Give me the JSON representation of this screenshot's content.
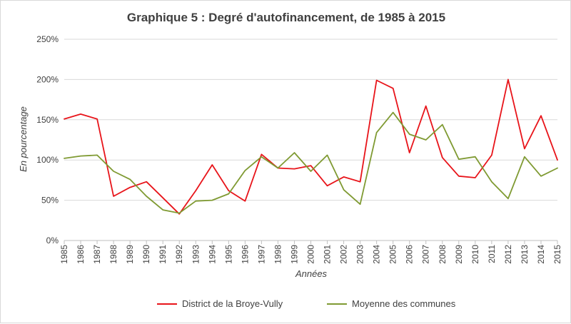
{
  "chart_data": {
    "type": "line",
    "title": "Graphique 5 : Degré d'autofinancement, de 1985 à 2015",
    "xlabel": "Années",
    "ylabel": "En pourcentage",
    "ylim": [
      0,
      250
    ],
    "yticks": [
      0,
      50,
      100,
      150,
      200,
      250
    ],
    "ytick_labels": [
      "0%",
      "50%",
      "100%",
      "150%",
      "200%",
      "250%"
    ],
    "grid": "horizontal",
    "legend_position": "bottom",
    "categories": [
      "1985",
      "1986",
      "1987",
      "1988",
      "1989",
      "1990",
      "1991",
      "1992",
      "1993",
      "1994",
      "1995",
      "1996",
      "1997",
      "1998",
      "1999",
      "2000",
      "2001",
      "2002",
      "2003",
      "2004",
      "2005",
      "2006",
      "2007",
      "2008",
      "2009",
      "2010",
      "2011",
      "2012",
      "2013",
      "2014",
      "2015"
    ],
    "series": [
      {
        "name": "District de la Broye-Vully",
        "color": "#e8141a",
        "values": [
          151,
          157,
          151,
          55,
          66,
          73,
          53,
          33,
          62,
          94,
          62,
          49,
          107,
          90,
          89,
          93,
          68,
          79,
          73,
          199,
          189,
          109,
          167,
          103,
          80,
          78,
          106,
          200,
          114,
          155,
          100
        ]
      },
      {
        "name": "Moyenne des communes",
        "color": "#7f9a32",
        "values": [
          102,
          105,
          106,
          86,
          76,
          55,
          38,
          34,
          49,
          50,
          58,
          87,
          104,
          90,
          109,
          86,
          106,
          63,
          45,
          134,
          159,
          132,
          125,
          144,
          101,
          104,
          73,
          52,
          104,
          80,
          90
        ]
      }
    ]
  }
}
